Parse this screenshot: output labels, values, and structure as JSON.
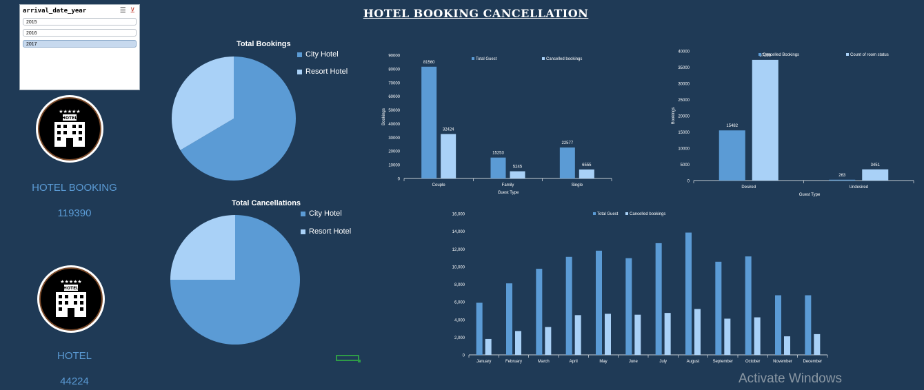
{
  "dashboard": {
    "title": "HOTEL BOOKING CANCELLATION"
  },
  "slicer": {
    "field": "arrival_date_year",
    "icons": [
      "multi-select-icon",
      "clear-filter-icon"
    ],
    "items": [
      {
        "label": "2015",
        "selected": false
      },
      {
        "label": "2016",
        "selected": false
      },
      {
        "label": "2017",
        "selected": true
      }
    ]
  },
  "kpis": [
    {
      "label": "HOTEL BOOKING",
      "value": "119390",
      "icon": "hotel-building-icon"
    },
    {
      "label": "HOTEL",
      "value": "44224",
      "icon": "hotel-building-icon"
    }
  ],
  "colors": {
    "city": "#5b9bd5",
    "resort": "#a9d1f7",
    "background": "#1f3a56",
    "accent_text": "#5b9bd5"
  },
  "watermark": "Activate Windows",
  "chart_data": [
    {
      "type": "pie",
      "title": "Total Bookings",
      "categories": [
        "City Hotel",
        "Resort Hotel"
      ],
      "values": [
        66.5,
        33.5
      ]
    },
    {
      "type": "pie",
      "title": "Total Cancellations",
      "categories": [
        "City Hotel",
        "Resort Hotel"
      ],
      "values": [
        75,
        25
      ]
    },
    {
      "type": "bar",
      "categories": [
        "Couple",
        "Family",
        "Single"
      ],
      "series": [
        {
          "name": "Total Guest",
          "values": [
            81560,
            15253,
            22577
          ]
        },
        {
          "name": "Cancelled bookings",
          "values": [
            32424,
            5245,
            6555
          ]
        }
      ],
      "data_labels": true,
      "xlabel": "Guest Type",
      "ylabel": "Bookings",
      "ylim": [
        0,
        90000
      ],
      "yticks": [
        0,
        10000,
        20000,
        30000,
        40000,
        50000,
        60000,
        70000,
        80000,
        90000
      ],
      "legend": "top"
    },
    {
      "type": "bar",
      "categories": [
        "Desired",
        "Undesired"
      ],
      "series": [
        {
          "name": "Cancelled Bookings",
          "values": [
            15482,
            263
          ]
        },
        {
          "name": "Count of room status",
          "values": [
            37258,
            3451
          ]
        }
      ],
      "data_labels": true,
      "xlabel": "Guest Type",
      "ylabel": "Bookings",
      "ylim": [
        0,
        40000
      ],
      "yticks": [
        0,
        5000,
        10000,
        15000,
        20000,
        25000,
        30000,
        35000,
        40000
      ],
      "legend": "top"
    },
    {
      "type": "bar",
      "categories": [
        "January",
        "February",
        "March",
        "April",
        "May",
        "June",
        "July",
        "August",
        "September",
        "October",
        "November",
        "December"
      ],
      "series": [
        {
          "name": "Total Guest",
          "values": [
            5900,
            8100,
            9750,
            11100,
            11800,
            10950,
            12650,
            13850,
            10550,
            11150,
            6750,
            6750
          ]
        },
        {
          "name": "Cancelled bookings",
          "values": [
            1800,
            2700,
            3150,
            4500,
            4650,
            4550,
            4750,
            5200,
            4100,
            4250,
            2100,
            2350
          ]
        }
      ],
      "ylim": [
        0,
        16000
      ],
      "yticks": [
        0,
        2000,
        4000,
        6000,
        8000,
        10000,
        12000,
        14000,
        16000
      ],
      "legend": "top"
    }
  ]
}
